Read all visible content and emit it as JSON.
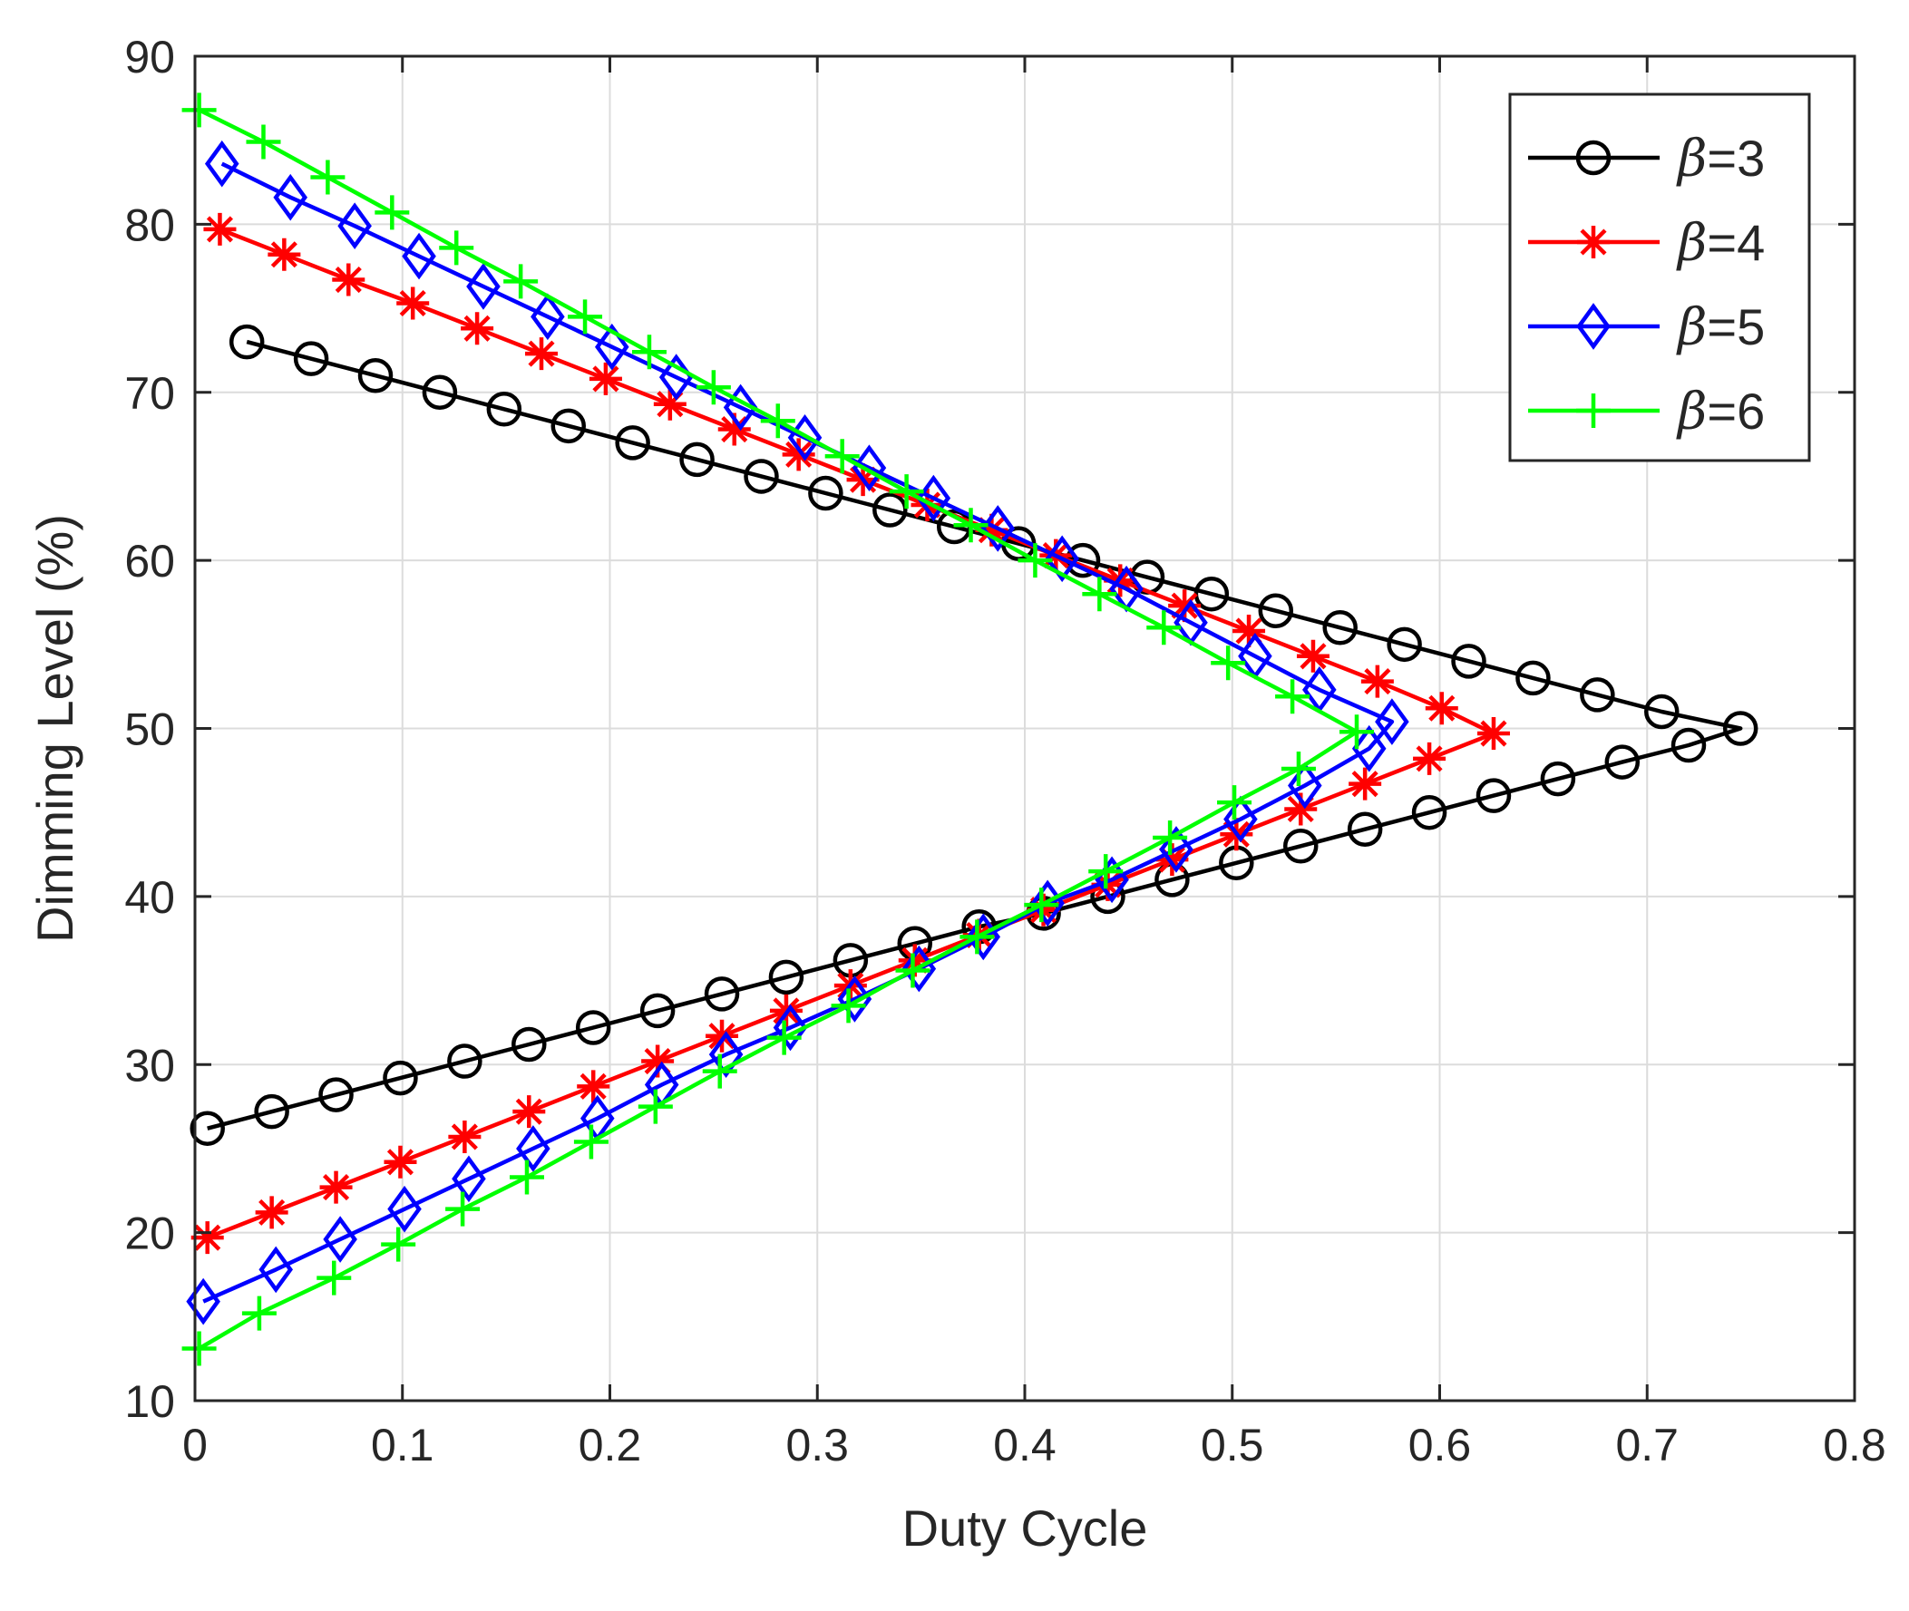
{
  "chart_data": {
    "type": "line",
    "xlabel": "Duty Cycle",
    "ylabel": "Dimming Level (%)",
    "xlim": [
      0,
      0.8
    ],
    "ylim": [
      10,
      90
    ],
    "xticks": [
      0,
      0.1,
      0.2,
      0.3,
      0.4,
      0.5,
      0.6,
      0.7,
      0.8
    ],
    "yticks": [
      10,
      20,
      30,
      40,
      50,
      60,
      70,
      80,
      90
    ],
    "xtick_labels": [
      "0",
      "0.1",
      "0.2",
      "0.3",
      "0.4",
      "0.5",
      "0.6",
      "0.7",
      "0.8"
    ],
    "ytick_labels": [
      "10",
      "20",
      "30",
      "40",
      "50",
      "60",
      "70",
      "80",
      "90"
    ],
    "grid": true,
    "legend_position": "top-right",
    "series": [
      {
        "name": "β=3",
        "name_symbol": "β",
        "name_suffix": "=3",
        "color": "#000000",
        "marker": "circle",
        "x": [
          0.025,
          0.056,
          0.087,
          0.118,
          0.149,
          0.18,
          0.211,
          0.242,
          0.273,
          0.304,
          0.335,
          0.366,
          0.397,
          0.428,
          0.459,
          0.49,
          0.521,
          0.552,
          0.583,
          0.614,
          0.645,
          0.676,
          0.707,
          0.745,
          0.72,
          0.688,
          0.657,
          0.626,
          0.595,
          0.564,
          0.533,
          0.502,
          0.471,
          0.44,
          0.409,
          0.378,
          0.347,
          0.316,
          0.285,
          0.254,
          0.223,
          0.192,
          0.161,
          0.13,
          0.099,
          0.068,
          0.037,
          0.006
        ],
        "y": [
          73,
          72,
          71,
          70,
          69,
          68,
          67,
          66,
          65,
          64,
          63,
          62,
          61,
          60,
          59,
          58,
          57,
          56,
          55,
          54,
          53,
          52,
          51,
          50,
          49,
          48,
          47,
          46,
          45,
          44,
          43,
          42,
          41,
          40,
          39,
          38.2,
          37.2,
          36.2,
          35.2,
          34.2,
          33.2,
          32.2,
          31.2,
          30.2,
          29.2,
          28.2,
          27.2,
          26.2
        ]
      },
      {
        "name": "β=4",
        "name_symbol": "β",
        "name_suffix": "=4",
        "color": "#ff0000",
        "marker": "asterisk",
        "x": [
          0.012,
          0.043,
          0.074,
          0.105,
          0.136,
          0.167,
          0.198,
          0.229,
          0.26,
          0.291,
          0.322,
          0.353,
          0.384,
          0.415,
          0.446,
          0.477,
          0.508,
          0.539,
          0.57,
          0.601,
          0.626,
          0.595,
          0.564,
          0.533,
          0.502,
          0.471,
          0.44,
          0.409,
          0.378,
          0.347,
          0.316,
          0.285,
          0.254,
          0.223,
          0.192,
          0.161,
          0.13,
          0.099,
          0.068,
          0.037,
          0.006
        ],
        "y": [
          79.7,
          78.2,
          76.7,
          75.3,
          73.8,
          72.3,
          70.8,
          69.3,
          67.8,
          66.3,
          64.8,
          63.3,
          61.8,
          60.3,
          58.8,
          57.3,
          55.8,
          54.3,
          52.8,
          51.2,
          49.7,
          48.2,
          46.7,
          45.2,
          43.7,
          42.2,
          40.7,
          39.2,
          37.7,
          36.2,
          34.7,
          33.2,
          31.7,
          30.2,
          28.7,
          27.2,
          25.7,
          24.2,
          22.7,
          21.2,
          19.7
        ]
      },
      {
        "name": "β=5",
        "name_symbol": "β",
        "name_suffix": "=5",
        "color": "#0000ff",
        "marker": "diamond",
        "x": [
          0.013,
          0.046,
          0.077,
          0.108,
          0.139,
          0.17,
          0.201,
          0.232,
          0.263,
          0.294,
          0.325,
          0.356,
          0.387,
          0.418,
          0.449,
          0.48,
          0.511,
          0.542,
          0.577,
          0.566,
          0.535,
          0.504,
          0.473,
          0.442,
          0.411,
          0.38,
          0.349,
          0.318,
          0.287,
          0.256,
          0.225,
          0.194,
          0.163,
          0.132,
          0.101,
          0.07,
          0.039,
          0.004
        ],
        "y": [
          83.6,
          81.6,
          79.9,
          78.1,
          76.3,
          74.5,
          72.7,
          70.9,
          69.1,
          67.3,
          65.5,
          63.7,
          61.9,
          60.1,
          58.3,
          56.3,
          54.3,
          52.3,
          50.4,
          48.8,
          46.6,
          44.6,
          42.8,
          41.0,
          39.6,
          37.6,
          35.7,
          33.9,
          32.2,
          30.6,
          28.8,
          26.8,
          25.0,
          23.2,
          21.4,
          19.6,
          17.8,
          15.9
        ]
      },
      {
        "name": "β=6",
        "name_symbol": "β",
        "name_suffix": "=6",
        "color": "#00ff00",
        "marker": "plus",
        "x": [
          0.002,
          0.033,
          0.064,
          0.095,
          0.126,
          0.157,
          0.188,
          0.219,
          0.25,
          0.281,
          0.312,
          0.343,
          0.374,
          0.405,
          0.436,
          0.467,
          0.498,
          0.529,
          0.56,
          0.532,
          0.501,
          0.47,
          0.439,
          0.408,
          0.377,
          0.346,
          0.315,
          0.284,
          0.253,
          0.222,
          0.191,
          0.16,
          0.129,
          0.098,
          0.067,
          0.031,
          0.002
        ],
        "y": [
          86.8,
          84.9,
          82.8,
          80.7,
          78.6,
          76.6,
          74.5,
          72.4,
          70.3,
          68.3,
          66.2,
          64.1,
          62.1,
          60.0,
          58.0,
          56.0,
          53.9,
          51.9,
          49.8,
          47.6,
          45.6,
          43.5,
          41.5,
          39.5,
          37.6,
          35.6,
          33.5,
          31.6,
          29.6,
          27.5,
          25.4,
          23.3,
          21.4,
          19.3,
          17.3,
          15.2,
          13.1
        ]
      }
    ]
  }
}
